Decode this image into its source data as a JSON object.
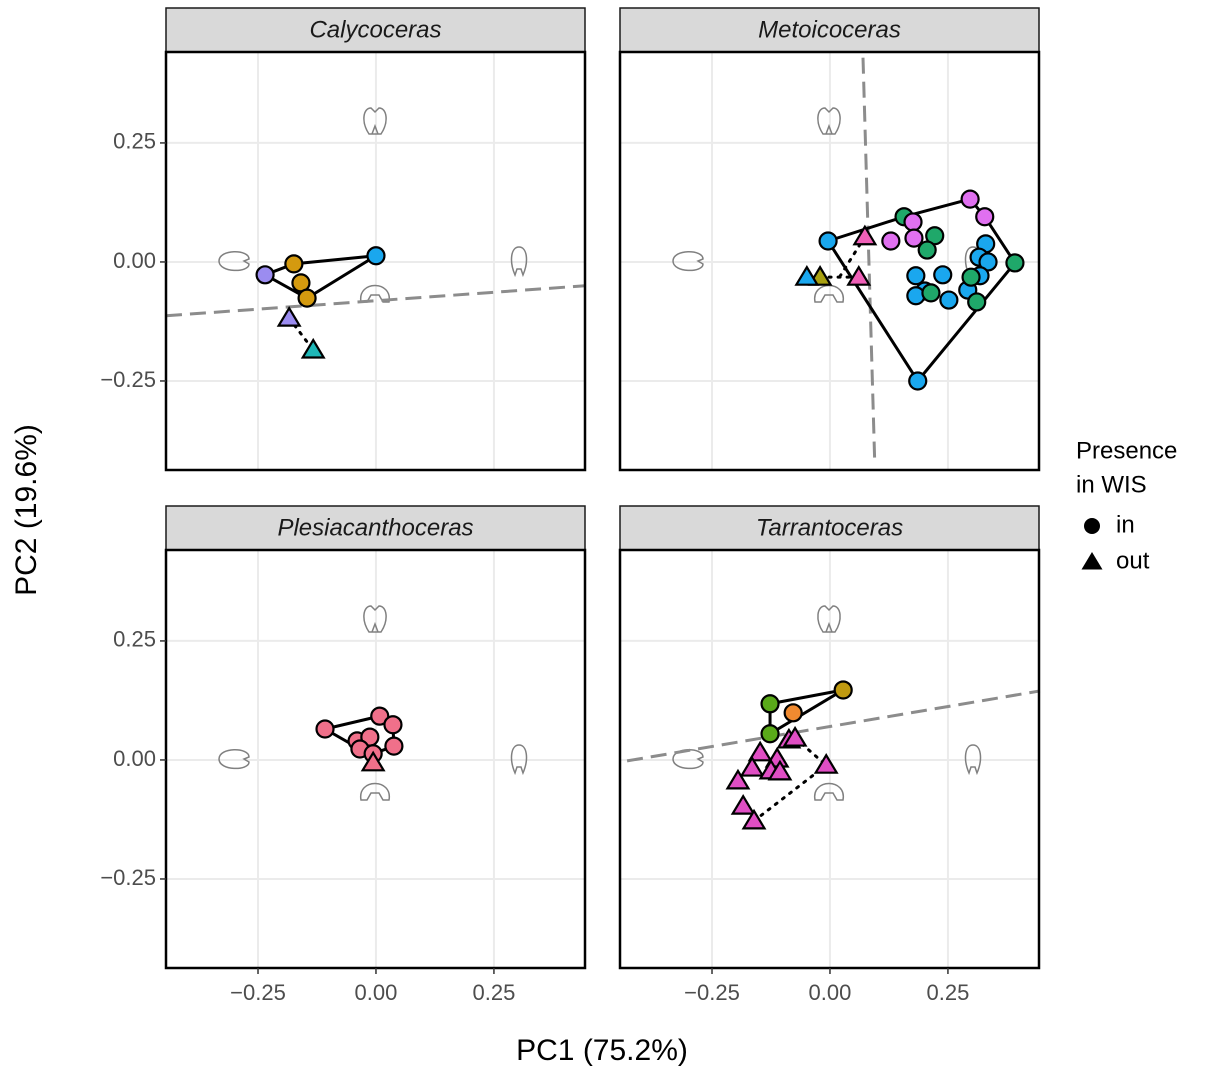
{
  "x_axis_label": "PC1 (75.2%)",
  "y_axis_label": "PC2 (19.6%)",
  "legend": {
    "title": [
      "Presence",
      "in WIS"
    ],
    "items": [
      {
        "label": "in",
        "shape": "circle"
      },
      {
        "label": "out",
        "shape": "triangle"
      }
    ]
  },
  "chart_data": [
    {
      "type": "scatter",
      "title": "Calycoceras",
      "xlim": [
        -0.445,
        0.443
      ],
      "ylim": [
        -0.437,
        0.441
      ],
      "xticks": [
        {
          "value": -0.25,
          "label": "−0.25"
        },
        {
          "value": 0,
          "label": "0.00"
        },
        {
          "value": 0.25,
          "label": "0.25"
        }
      ],
      "yticks": [
        {
          "value": -0.25,
          "label": "−0.25"
        },
        {
          "value": 0,
          "label": "0.00"
        },
        {
          "value": 0.25,
          "label": "0.25"
        }
      ],
      "grid": true,
      "hull": true,
      "series": [
        {
          "color": "#9b8cf0",
          "shape": "circle",
          "x": [
            -0.235
          ],
          "y": [
            -0.027
          ]
        },
        {
          "color": "#d49a0f",
          "shape": "circle",
          "x": [
            -0.174,
            -0.159,
            -0.146
          ],
          "y": [
            -0.004,
            -0.044,
            -0.076
          ]
        },
        {
          "color": "#1aa7ee",
          "shape": "circle",
          "x": [
            0.0
          ],
          "y": [
            0.013
          ]
        },
        {
          "color": "#9b8cf0",
          "shape": "triangle",
          "x": [
            -0.184
          ],
          "y": [
            -0.118
          ]
        },
        {
          "color": "#1fb8b8",
          "shape": "triangle",
          "x": [
            -0.133
          ],
          "y": [
            -0.185
          ]
        }
      ],
      "dotted_lines": [
        {
          "x": [
            -0.184,
            -0.133
          ],
          "y": [
            -0.118,
            -0.185
          ]
        }
      ],
      "dashed_line": {
        "x": [
          -0.445,
          0.443
        ],
        "y": [
          -0.113,
          -0.05
        ]
      }
    },
    {
      "type": "scatter",
      "title": "Metoicoceras",
      "xlim": [
        -0.445,
        0.443
      ],
      "ylim": [
        -0.437,
        0.441
      ],
      "xticks": [
        {
          "value": -0.25,
          "label": "−0.25"
        },
        {
          "value": 0,
          "label": "0.00"
        },
        {
          "value": 0.25,
          "label": "0.25"
        }
      ],
      "yticks": [
        {
          "value": -0.25,
          "label": "−0.25"
        },
        {
          "value": 0,
          "label": "0.00"
        },
        {
          "value": 0.25,
          "label": "0.25"
        }
      ],
      "grid": true,
      "hull": true,
      "series": [
        {
          "color": "#1aa7ee",
          "shape": "circle",
          "x": [
            -0.004,
            0.33,
            0.316,
            0.335,
            0.318,
            0.239,
            0.182,
            0.201,
            0.182,
            0.252,
            0.292,
            0.186
          ],
          "y": [
            0.044,
            0.038,
            0.01,
            0.0,
            -0.029,
            -0.027,
            -0.029,
            -0.061,
            -0.071,
            -0.08,
            -0.059,
            -0.25
          ]
        },
        {
          "color": "#1fa86a",
          "shape": "circle",
          "x": [
            0.157,
            0.222,
            0.206,
            0.392,
            0.299,
            0.214,
            0.311
          ],
          "y": [
            0.095,
            0.055,
            0.025,
            -0.002,
            -0.032,
            -0.065,
            -0.084
          ]
        },
        {
          "color": "#e070f0",
          "shape": "circle",
          "x": [
            0.297,
            0.328,
            0.176,
            0.129,
            0.178
          ],
          "y": [
            0.132,
            0.095,
            0.084,
            0.044,
            0.05
          ]
        },
        {
          "color": "#f060b8",
          "shape": "triangle",
          "x": [
            0.074,
            0.061
          ],
          "y": [
            0.053,
            -0.032
          ]
        },
        {
          "color": "#a8a010",
          "shape": "triangle",
          "x": [
            -0.021
          ],
          "y": [
            -0.032
          ]
        },
        {
          "color": "#1aa7ee",
          "shape": "triangle",
          "x": [
            -0.049
          ],
          "y": [
            -0.032
          ]
        }
      ],
      "dotted_lines": [
        {
          "x": [
            -0.021,
            0.061
          ],
          "y": [
            -0.032,
            -0.032
          ]
        },
        {
          "x": [
            0.074,
            0.02
          ],
          "y": [
            0.053,
            -0.032
          ]
        }
      ],
      "dashed_line": {
        "x": [
          0.07,
          0.095
        ],
        "y": [
          0.429,
          -0.426
        ]
      }
    },
    {
      "type": "scatter",
      "title": "Plesiacanthoceras",
      "xlim": [
        -0.445,
        0.443
      ],
      "ylim": [
        -0.437,
        0.441
      ],
      "xticks": [
        {
          "value": -0.25,
          "label": "−0.25"
        },
        {
          "value": 0,
          "label": "0.00"
        },
        {
          "value": 0.25,
          "label": "0.25"
        }
      ],
      "yticks": [
        {
          "value": -0.25,
          "label": "−0.25"
        },
        {
          "value": 0,
          "label": "0.00"
        },
        {
          "value": 0.25,
          "label": "0.25"
        }
      ],
      "grid": true,
      "hull": true,
      "series": [
        {
          "color": "#f0708a",
          "shape": "circle",
          "x": [
            -0.108,
            0.008,
            0.036,
            -0.04,
            -0.013,
            0.038,
            -0.034,
            -0.006
          ],
          "y": [
            0.065,
            0.092,
            0.074,
            0.04,
            0.048,
            0.029,
            0.023,
            0.013
          ]
        },
        {
          "color": "#f0708a",
          "shape": "triangle",
          "x": [
            -0.006
          ],
          "y": [
            -0.006
          ]
        }
      ]
    },
    {
      "type": "scatter",
      "title": "Tarrantoceras",
      "xlim": [
        -0.445,
        0.443
      ],
      "ylim": [
        -0.437,
        0.441
      ],
      "xticks": [
        {
          "value": -0.25,
          "label": "−0.25"
        },
        {
          "value": 0,
          "label": "0.00"
        },
        {
          "value": 0.25,
          "label": "0.25"
        }
      ],
      "yticks": [
        {
          "value": -0.25,
          "label": "−0.25"
        },
        {
          "value": 0,
          "label": "0.00"
        },
        {
          "value": 0.25,
          "label": "0.25"
        }
      ],
      "grid": true,
      "hull": true,
      "series": [
        {
          "color": "#5aaa1a",
          "shape": "circle",
          "x": [
            -0.127,
            -0.127
          ],
          "y": [
            0.118,
            0.055
          ]
        },
        {
          "color": "#c09a10",
          "shape": "circle",
          "x": [
            0.028
          ],
          "y": [
            0.147
          ]
        },
        {
          "color": "#f08a30",
          "shape": "circle",
          "x": [
            -0.078
          ],
          "y": [
            0.099
          ]
        },
        {
          "color": "#e04ec4",
          "shape": "triangle",
          "x": [
            -0.148,
            -0.087,
            -0.112,
            -0.165,
            -0.125,
            -0.195,
            -0.106,
            -0.008,
            -0.184,
            -0.161,
            -0.074
          ],
          "y": [
            0.015,
            0.042,
            0.002,
            -0.017,
            -0.023,
            -0.044,
            -0.025,
            -0.011,
            -0.097,
            -0.128,
            0.046
          ]
        }
      ],
      "dotted_lines": [
        {
          "x": [
            -0.161,
            -0.008
          ],
          "y": [
            -0.128,
            -0.011
          ]
        },
        {
          "x": [
            -0.074,
            -0.008
          ],
          "y": [
            0.046,
            -0.011
          ]
        }
      ],
      "dashed_line": {
        "x": [
          -0.43,
          0.445
        ],
        "y": [
          -0.002,
          0.145
        ]
      }
    }
  ]
}
